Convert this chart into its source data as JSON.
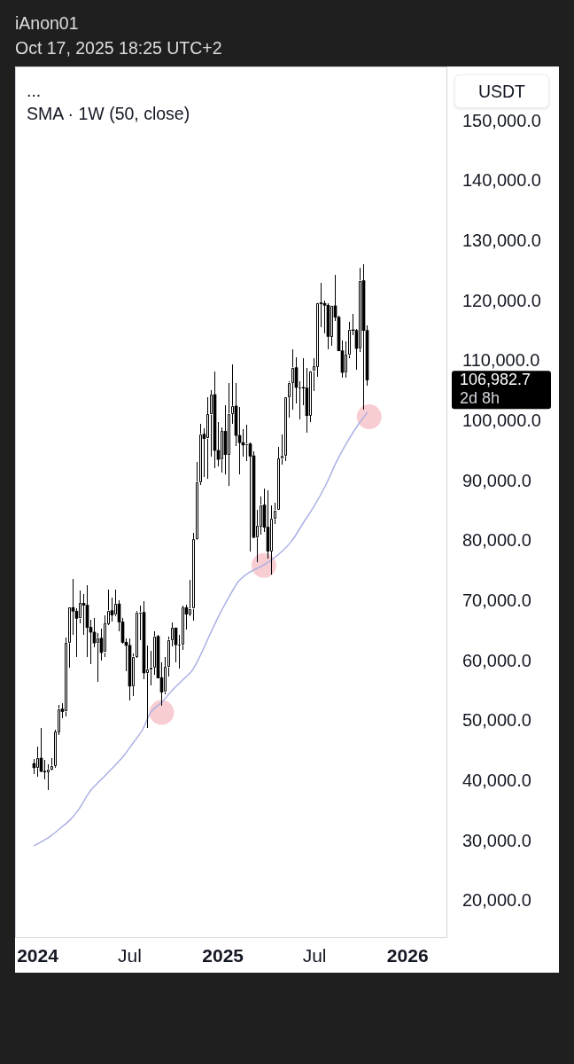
{
  "chart_data": {
    "type": "candlestick",
    "title": "iAnon01",
    "subtitle": "Oct 17, 2025 18:25 UTC+2",
    "ylabel": "USDT",
    "color": "#000000",
    "annotations": [
      "...",
      "106,982.7",
      "2d 8h"
    ],
    "x": [
      "2023-12-25",
      "2024-01-01",
      "2024-01-08",
      "2024-01-15",
      "2024-01-22",
      "2024-01-29",
      "2024-02-05",
      "2024-02-12",
      "2024-02-19",
      "2024-02-26",
      "2024-03-04",
      "2024-03-11",
      "2024-03-18",
      "2024-03-25",
      "2024-04-01",
      "2024-04-08",
      "2024-04-15",
      "2024-04-22",
      "2024-04-29",
      "2024-05-06",
      "2024-05-13",
      "2024-05-20",
      "2024-05-27",
      "2024-06-03",
      "2024-06-10",
      "2024-06-17",
      "2024-06-24",
      "2024-07-01",
      "2024-07-08",
      "2024-07-15",
      "2024-07-22",
      "2024-07-29",
      "2024-08-05",
      "2024-08-12",
      "2024-08-19",
      "2024-08-26",
      "2024-09-02",
      "2024-09-09",
      "2024-09-16",
      "2024-09-23",
      "2024-09-30",
      "2024-10-07",
      "2024-10-14",
      "2024-10-21",
      "2024-10-28",
      "2024-11-04",
      "2024-11-11",
      "2024-11-18",
      "2024-11-25",
      "2024-12-02",
      "2024-12-09",
      "2024-12-16",
      "2024-12-23",
      "2024-12-30",
      "2025-01-06",
      "2025-01-13",
      "2025-01-20",
      "2025-01-27",
      "2025-02-03",
      "2025-02-10",
      "2025-02-17",
      "2025-02-24",
      "2025-03-03",
      "2025-03-10",
      "2025-03-17",
      "2025-03-24",
      "2025-03-31",
      "2025-04-07",
      "2025-04-14",
      "2025-04-21",
      "2025-04-28",
      "2025-05-05",
      "2025-05-12",
      "2025-05-19",
      "2025-05-26",
      "2025-06-02",
      "2025-06-09",
      "2025-06-16",
      "2025-06-23",
      "2025-06-30",
      "2025-07-07",
      "2025-07-14",
      "2025-07-21",
      "2025-07-28",
      "2025-08-04",
      "2025-08-11",
      "2025-08-18",
      "2025-08-25",
      "2025-09-01",
      "2025-09-08",
      "2025-09-15",
      "2025-09-22",
      "2025-09-29",
      "2025-10-06",
      "2025-10-13"
    ],
    "ohlc": [
      [
        43000,
        43800,
        41300,
        42300
      ],
      [
        42300,
        45900,
        40800,
        43900
      ],
      [
        43900,
        49000,
        41500,
        41700
      ],
      [
        41700,
        43600,
        40300,
        41600
      ],
      [
        41600,
        42800,
        38600,
        42000
      ],
      [
        42000,
        43900,
        41800,
        42600
      ],
      [
        42600,
        48600,
        42300,
        48300
      ],
      [
        48300,
        52800,
        47700,
        52100
      ],
      [
        52100,
        53000,
        50500,
        51700
      ],
      [
        51700,
        64000,
        50900,
        63100
      ],
      [
        63100,
        69000,
        59000,
        69000
      ],
      [
        69000,
        73800,
        64500,
        68400
      ],
      [
        68400,
        68900,
        60800,
        67200
      ],
      [
        67200,
        71800,
        66400,
        69700
      ],
      [
        69700,
        71300,
        64500,
        69400
      ],
      [
        69400,
        72800,
        60700,
        65700
      ],
      [
        65700,
        66900,
        59600,
        64900
      ],
      [
        64900,
        67200,
        62400,
        63100
      ],
      [
        63100,
        64700,
        56600,
        63900
      ],
      [
        63900,
        65500,
        60200,
        61500
      ],
      [
        61500,
        67700,
        60700,
        66300
      ],
      [
        66300,
        72000,
        66100,
        68500
      ],
      [
        68500,
        70700,
        66700,
        67800
      ],
      [
        67800,
        72000,
        67600,
        69600
      ],
      [
        69600,
        70200,
        65100,
        66600
      ],
      [
        66600,
        67300,
        63000,
        63200
      ],
      [
        63200,
        63900,
        58400,
        62700
      ],
      [
        62700,
        63800,
        53500,
        55900
      ],
      [
        55900,
        61400,
        54300,
        60800
      ],
      [
        60800,
        68400,
        60600,
        68200
      ],
      [
        68200,
        69400,
        63500,
        68200
      ],
      [
        68200,
        70100,
        57100,
        58100
      ],
      [
        58100,
        62700,
        49000,
        58700
      ],
      [
        58700,
        61800,
        56100,
        59000
      ],
      [
        59000,
        65000,
        57800,
        64200
      ],
      [
        64200,
        64500,
        57200,
        57300
      ],
      [
        57300,
        59800,
        52600,
        54900
      ],
      [
        54900,
        60700,
        54600,
        59100
      ],
      [
        59100,
        64100,
        57500,
        63600
      ],
      [
        63600,
        66500,
        62500,
        65600
      ],
      [
        65600,
        65600,
        59800,
        62800
      ],
      [
        62800,
        64500,
        58900,
        62800
      ],
      [
        62800,
        69400,
        62000,
        69000
      ],
      [
        69000,
        69500,
        65300,
        67900
      ],
      [
        67900,
        73600,
        67500,
        68800
      ],
      [
        68800,
        81500,
        66800,
        80400
      ],
      [
        80400,
        93300,
        80200,
        89900
      ],
      [
        89900,
        99600,
        89400,
        97900
      ],
      [
        97900,
        98900,
        90800,
        97200
      ],
      [
        97200,
        104100,
        90500,
        101200
      ],
      [
        101200,
        105300,
        94200,
        104500
      ],
      [
        104500,
        108400,
        92200,
        95200
      ],
      [
        95200,
        100000,
        92500,
        93700
      ],
      [
        93700,
        99000,
        91500,
        98400
      ],
      [
        98400,
        102700,
        91200,
        94500
      ],
      [
        94500,
        106400,
        89300,
        101300
      ],
      [
        101300,
        109600,
        99600,
        102600
      ],
      [
        102600,
        106500,
        96000,
        97700
      ],
      [
        97700,
        102500,
        91200,
        96500
      ],
      [
        96500,
        98800,
        94100,
        96100
      ],
      [
        96100,
        99500,
        93400,
        96300
      ],
      [
        96300,
        96500,
        78300,
        94300
      ],
      [
        94300,
        95000,
        80500,
        80700
      ],
      [
        80700,
        85300,
        76600,
        82600
      ],
      [
        82600,
        87500,
        81100,
        86100
      ],
      [
        86100,
        88800,
        81600,
        82400
      ],
      [
        82400,
        88500,
        77200,
        78400
      ],
      [
        78400,
        86100,
        74500,
        83800
      ],
      [
        83800,
        86500,
        83000,
        85200
      ],
      [
        85200,
        95800,
        85100,
        93800
      ],
      [
        93800,
        97900,
        92800,
        94300
      ],
      [
        94300,
        104100,
        93400,
        104100
      ],
      [
        104100,
        106700,
        100700,
        106500
      ],
      [
        106500,
        112000,
        102000,
        109000
      ],
      [
        109000,
        110700,
        103100,
        105700
      ],
      [
        105700,
        106800,
        100400,
        105700
      ],
      [
        105700,
        110500,
        102700,
        105600
      ],
      [
        105600,
        109000,
        98200,
        101000
      ],
      [
        101000,
        108500,
        100000,
        108400
      ],
      [
        108400,
        110500,
        105100,
        109200
      ],
      [
        109200,
        119900,
        107400,
        119800
      ],
      [
        119800,
        123200,
        115700,
        119700
      ],
      [
        119700,
        120200,
        114700,
        119400
      ],
      [
        119400,
        119800,
        112000,
        114200
      ],
      [
        114200,
        119300,
        112700,
        119300
      ],
      [
        119300,
        124500,
        116800,
        117400
      ],
      [
        117400,
        117600,
        111700,
        111800
      ],
      [
        111800,
        113500,
        107300,
        108200
      ],
      [
        108200,
        113400,
        107300,
        111100
      ],
      [
        111100,
        116700,
        110600,
        115300
      ],
      [
        115300,
        117900,
        114400,
        115200
      ],
      [
        115200,
        115500,
        108600,
        112200
      ],
      [
        112200,
        125700,
        111600,
        123500
      ],
      [
        123500,
        126200,
        102000,
        115200
      ],
      [
        115200,
        116000,
        106000,
        106982.7
      ]
    ],
    "colors": [
      "#000000",
      "#ffffff",
      "#000000",
      "#000000",
      "#ffffff",
      "#ffffff",
      "#ffffff",
      "#ffffff",
      "#000000",
      "#ffffff",
      "#ffffff",
      "#000000",
      "#000000",
      "#ffffff",
      "#000000",
      "#000000",
      "#000000",
      "#000000",
      "#ffffff",
      "#000000",
      "#ffffff",
      "#ffffff",
      "#000000",
      "#ffffff",
      "#000000",
      "#000000",
      "#000000",
      "#000000",
      "#ffffff",
      "#ffffff",
      "#ffffff",
      "#000000",
      "#ffffff",
      "#ffffff",
      "#ffffff",
      "#000000",
      "#000000",
      "#ffffff",
      "#ffffff",
      "#ffffff",
      "#000000",
      "#ffffff",
      "#ffffff",
      "#000000",
      "#ffffff",
      "#ffffff",
      "#ffffff",
      "#ffffff",
      "#000000",
      "#ffffff",
      "#ffffff",
      "#000000",
      "#000000",
      "#ffffff",
      "#000000",
      "#ffffff",
      "#ffffff",
      "#000000",
      "#000000",
      "#000000",
      "#ffffff",
      "#000000",
      "#000000",
      "#ffffff",
      "#ffffff",
      "#000000",
      "#000000",
      "#ffffff",
      "#ffffff",
      "#ffffff",
      "#ffffff",
      "#ffffff",
      "#ffffff",
      "#ffffff",
      "#000000",
      "#ffffff",
      "#000000",
      "#000000",
      "#ffffff",
      "#ffffff",
      "#ffffff",
      "#000000",
      "#000000",
      "#000000",
      "#ffffff",
      "#000000",
      "#000000",
      "#000000",
      "#ffffff",
      "#ffffff",
      "#000000",
      "#000000",
      "#ffffff",
      "#000000",
      "#000000"
    ],
    "series": [
      {
        "type": "line",
        "name": "SMA · 1W (50, close)",
        "color": "#aab0e4",
        "x": [
          "2023-12-25",
          "2024-01-25",
          "2024-02-16",
          "2024-03-04",
          "2024-03-21",
          "2024-04-12",
          "2024-05-04",
          "2024-05-26",
          "2024-06-17",
          "2024-07-09",
          "2024-07-26",
          "2024-08-11",
          "2024-09-02",
          "2024-09-25",
          "2024-10-17",
          "2024-11-02",
          "2024-11-19",
          "2024-12-09",
          "2024-12-25",
          "2025-01-16",
          "2025-02-01",
          "2025-02-23",
          "2025-03-23",
          "2025-04-20",
          "2025-05-17",
          "2025-06-08",
          "2025-07-01",
          "2025-07-23",
          "2025-08-14",
          "2025-09-05",
          "2025-09-27",
          "2025-10-13"
        ],
        "values": [
          29300,
          30800,
          32300,
          33500,
          35200,
          38200,
          40200,
          42100,
          44100,
          46600,
          48600,
          51500,
          53200,
          55400,
          57200,
          58600,
          61300,
          65000,
          67800,
          71200,
          73400,
          74900,
          76100,
          77800,
          80100,
          83000,
          86000,
          89400,
          93400,
          96800,
          99700,
          101500
        ]
      },
      {
        "type": "scatter",
        "color": "#f8cdd2",
        "marker": "circle",
        "x": [
          "2024-09-02",
          "2025-03-23",
          "2025-10-17"
        ],
        "values": [
          51500,
          76000,
          100800
        ]
      }
    ],
    "xlim": [
      "2023-11-17T09:00",
      "2026-03-20T09:00"
    ],
    "xticks": [
      {
        "value": "2024-01-01",
        "label": "2024"
      },
      {
        "value": "2024-07-01",
        "label": "Jul"
      },
      {
        "value": "2025-01-01",
        "label": "2025"
      },
      {
        "value": "2025-07-01",
        "label": "Jul"
      },
      {
        "value": "2026-01-01",
        "label": "2026"
      }
    ],
    "ylim": [
      13900,
      159200
    ],
    "yticks": [
      {
        "value": 20000,
        "label": "20,000.0"
      },
      {
        "value": 30000,
        "label": "30,000.0"
      },
      {
        "value": 40000,
        "label": "40,000.0"
      },
      {
        "value": 50000,
        "label": "50,000.0"
      },
      {
        "value": 60000,
        "label": "60,000.0"
      },
      {
        "value": 70000,
        "label": "70,000.0"
      },
      {
        "value": 80000,
        "label": "80,000.0"
      },
      {
        "value": 90000,
        "label": "90,000.0"
      },
      {
        "value": 100000,
        "label": "100,000.0"
      },
      {
        "value": 110000,
        "label": "110,000.0"
      },
      {
        "value": 120000,
        "label": "120,000.0"
      },
      {
        "value": 130000,
        "label": "130,000.0"
      },
      {
        "value": 140000,
        "label": "140,000.0"
      },
      {
        "value": 150000,
        "label": "150,000.0"
      }
    ],
    "legend": "top left"
  }
}
